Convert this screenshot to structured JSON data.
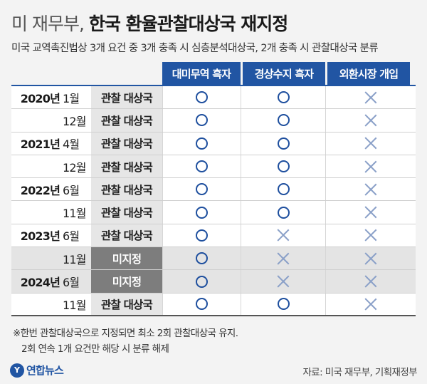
{
  "title": {
    "prefix": "미 재무부,",
    "main": "한국 환율관찰대상국 재지정"
  },
  "subtitle": "미국 교역촉진법상 3개 요건 중 3개 충족 시 심층분석대상국, 2개 충족 시 관찰대상국 분류",
  "columns": [
    "대미무역 흑자",
    "경상수지 흑자",
    "외환시장 개입"
  ],
  "rows": [
    {
      "year": "2020년",
      "month": "1월",
      "status": "관찰 대상국",
      "designated": true,
      "marks": [
        "O",
        "O",
        "X"
      ]
    },
    {
      "year": "",
      "month": "12월",
      "status": "관찰 대상국",
      "designated": true,
      "marks": [
        "O",
        "O",
        "X"
      ]
    },
    {
      "year": "2021년",
      "month": "4월",
      "status": "관찰 대상국",
      "designated": true,
      "marks": [
        "O",
        "O",
        "X"
      ]
    },
    {
      "year": "",
      "month": "12월",
      "status": "관찰 대상국",
      "designated": true,
      "marks": [
        "O",
        "O",
        "X"
      ]
    },
    {
      "year": "2022년",
      "month": "6월",
      "status": "관찰 대상국",
      "designated": true,
      "marks": [
        "O",
        "O",
        "X"
      ]
    },
    {
      "year": "",
      "month": "11월",
      "status": "관찰 대상국",
      "designated": true,
      "marks": [
        "O",
        "O",
        "X"
      ]
    },
    {
      "year": "2023년",
      "month": "6월",
      "status": "관찰 대상국",
      "designated": true,
      "marks": [
        "O",
        "X",
        "X"
      ]
    },
    {
      "year": "",
      "month": "11월",
      "status": "미지정",
      "designated": false,
      "marks": [
        "O",
        "X",
        "X"
      ]
    },
    {
      "year": "2024년",
      "month": "6월",
      "status": "미지정",
      "designated": false,
      "marks": [
        "O",
        "X",
        "X"
      ]
    },
    {
      "year": "",
      "month": "11월",
      "status": "관찰 대상국",
      "designated": true,
      "marks": [
        "O",
        "O",
        "X"
      ]
    }
  ],
  "notes": [
    "※한번 관찰대상국으로 지정되면 최소 2회 관찰대상국 유지.",
    "2회 연속 1개 요건만 해당 시 분류 해제"
  ],
  "logo": {
    "icon": "Y",
    "text": "연합뉴스"
  },
  "source": "자료: 미국 재무부, 기획재정부",
  "colors": {
    "header": "#2155a3",
    "circle": "#1e4f9e",
    "cross": "#8aa0c8",
    "undesignated": "#7d7d7d"
  }
}
